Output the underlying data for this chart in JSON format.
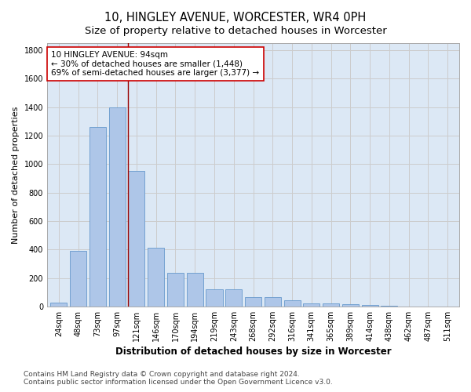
{
  "title": "10, HINGLEY AVENUE, WORCESTER, WR4 0PH",
  "subtitle": "Size of property relative to detached houses in Worcester",
  "xlabel": "Distribution of detached houses by size in Worcester",
  "ylabel": "Number of detached properties",
  "categories": [
    "24sqm",
    "48sqm",
    "73sqm",
    "97sqm",
    "121sqm",
    "146sqm",
    "170sqm",
    "194sqm",
    "219sqm",
    "243sqm",
    "268sqm",
    "292sqm",
    "316sqm",
    "341sqm",
    "365sqm",
    "389sqm",
    "414sqm",
    "438sqm",
    "462sqm",
    "487sqm",
    "511sqm"
  ],
  "values": [
    25,
    390,
    1260,
    1400,
    950,
    410,
    235,
    235,
    120,
    120,
    65,
    65,
    45,
    20,
    20,
    15,
    10,
    5,
    0,
    0,
    0
  ],
  "bar_color": "#aec6e8",
  "bar_edge_color": "#6699cc",
  "vline_x_index": 3.55,
  "vline_color": "#990000",
  "annotation_line1": "10 HINGLEY AVENUE: 94sqm",
  "annotation_line2": "← 30% of detached houses are smaller (1,448)",
  "annotation_line3": "69% of semi-detached houses are larger (3,377) →",
  "annotation_box_color": "#ffffff",
  "annotation_box_edge": "#cc0000",
  "ylim": [
    0,
    1850
  ],
  "yticks": [
    0,
    200,
    400,
    600,
    800,
    1000,
    1200,
    1400,
    1600,
    1800
  ],
  "grid_color": "#cccccc",
  "plot_bg_color": "#dce8f5",
  "fig_bg_color": "#ffffff",
  "footer": "Contains HM Land Registry data © Crown copyright and database right 2024.\nContains public sector information licensed under the Open Government Licence v3.0.",
  "title_fontsize": 10.5,
  "subtitle_fontsize": 9.5,
  "xlabel_fontsize": 8.5,
  "ylabel_fontsize": 8,
  "tick_fontsize": 7,
  "annotation_fontsize": 7.5,
  "footer_fontsize": 6.5
}
